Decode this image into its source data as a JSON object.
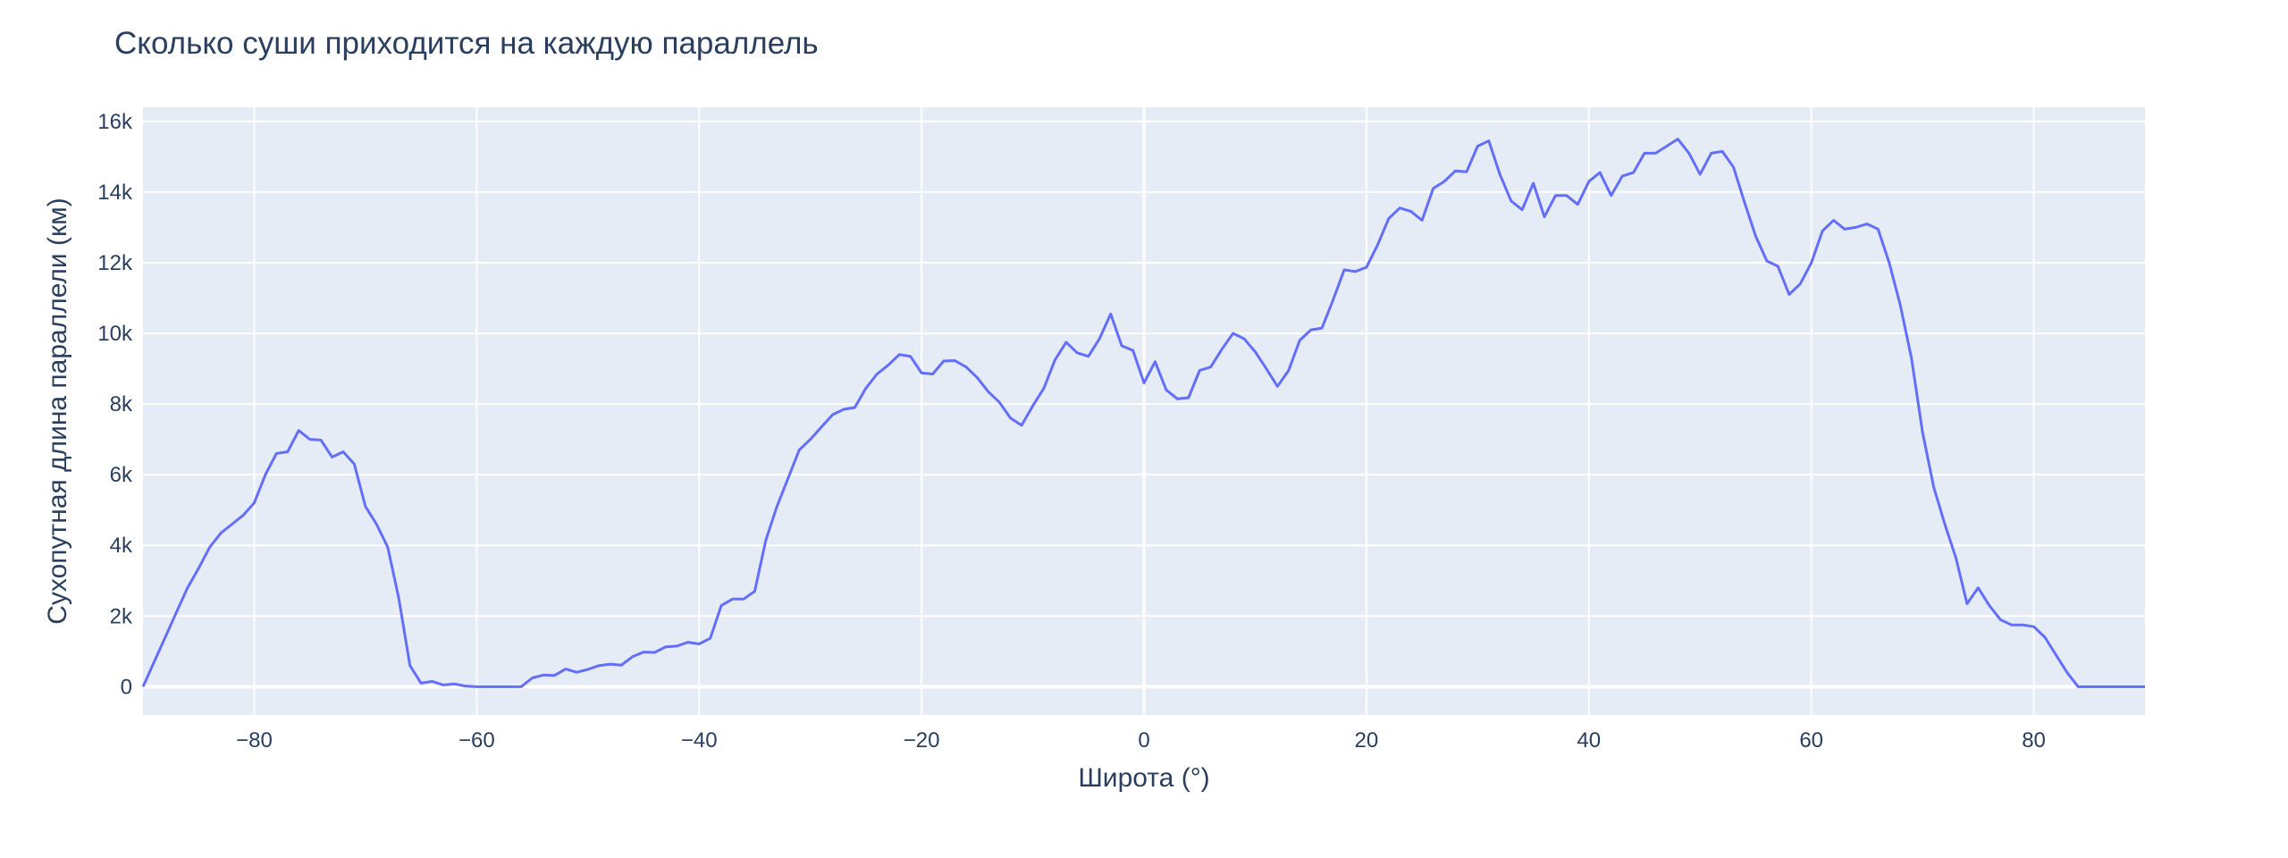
{
  "chart_data": {
    "type": "line",
    "title": "Сколько суши приходится на каждую параллель",
    "xlabel": "Широта (°)",
    "ylabel": "Сухопутная длина параллели (км)",
    "xlim": [
      -90,
      90
    ],
    "ylim": [
      -800,
      16400
    ],
    "x_ticks": [
      -80,
      -60,
      -40,
      -20,
      0,
      20,
      40,
      60,
      80
    ],
    "x_tick_labels": [
      "−80",
      "−60",
      "−40",
      "−20",
      "0",
      "20",
      "40",
      "60",
      "80"
    ],
    "y_ticks": [
      0,
      2000,
      4000,
      6000,
      8000,
      10000,
      12000,
      14000,
      16000
    ],
    "y_tick_labels": [
      "0",
      "2k",
      "4k",
      "6k",
      "8k",
      "10k",
      "12k",
      "14k",
      "16k"
    ],
    "grid": true,
    "colors": {
      "plot_background": "#e5ecf6",
      "grid": "#ffffff",
      "line": "#636efa",
      "text": "#2a3f5f"
    },
    "series": [
      {
        "x": [
          -90,
          -89,
          -88,
          -87,
          -86,
          -85,
          -84,
          -83,
          -82,
          -81,
          -80,
          -79,
          -78,
          -77,
          -76,
          -75,
          -74,
          -73,
          -72,
          -71,
          -70,
          -69,
          -68,
          -67,
          -66,
          -65,
          -64,
          -63,
          -62,
          -61,
          -60,
          -59,
          -58,
          -57,
          -56,
          -55,
          -54,
          -53,
          -52,
          -51,
          -50,
          -49,
          -48,
          -47,
          -46,
          -45,
          -44,
          -43,
          -42,
          -41,
          -40,
          -39,
          -38,
          -37,
          -36,
          -35,
          -34,
          -33,
          -32,
          -31,
          -30,
          -29,
          -28,
          -27,
          -26,
          -25,
          -24,
          -23,
          -22,
          -21,
          -20,
          -19,
          -18,
          -17,
          -16,
          -15,
          -14,
          -13,
          -12,
          -11,
          -10,
          -9,
          -8,
          -7,
          -6,
          -5,
          -4,
          -3,
          -2,
          -1,
          0,
          1,
          2,
          3,
          4,
          5,
          6,
          7,
          8,
          9,
          10,
          11,
          12,
          13,
          14,
          15,
          16,
          17,
          18,
          19,
          20,
          21,
          22,
          23,
          24,
          25,
          26,
          27,
          28,
          29,
          30,
          31,
          32,
          33,
          34,
          35,
          36,
          37,
          38,
          39,
          40,
          41,
          42,
          43,
          44,
          45,
          46,
          47,
          48,
          49,
          50,
          51,
          52,
          53,
          54,
          55,
          56,
          57,
          58,
          59,
          60,
          61,
          62,
          63,
          64,
          65,
          66,
          67,
          68,
          69,
          70,
          71,
          72,
          73,
          74,
          75,
          76,
          77,
          78,
          79,
          80,
          81,
          82,
          83,
          84,
          85,
          86,
          87,
          88,
          89,
          90
        ],
        "y": [
          0,
          700,
          1400,
          2100,
          2800,
          3350,
          3950,
          4350,
          4600,
          4850,
          5200,
          6000,
          6600,
          6650,
          7250,
          7000,
          6980,
          6500,
          6650,
          6300,
          5100,
          4600,
          3950,
          2500,
          600,
          100,
          150,
          50,
          80,
          20,
          0,
          0,
          0,
          0,
          0,
          250,
          330,
          320,
          500,
          410,
          490,
          600,
          640,
          610,
          850,
          980,
          970,
          1130,
          1150,
          1260,
          1210,
          1370,
          2300,
          2480,
          2480,
          2700,
          4150,
          5100,
          5900,
          6700,
          7000,
          7350,
          7700,
          7850,
          7900,
          8450,
          8850,
          9100,
          9400,
          9350,
          8880,
          8850,
          9220,
          9230,
          9050,
          8750,
          8350,
          8050,
          7600,
          7400,
          7950,
          8450,
          9250,
          9750,
          9450,
          9350,
          9850,
          10550,
          9650,
          9520,
          8600,
          9200,
          8400,
          8150,
          8180,
          8950,
          9050,
          9550,
          10000,
          9850,
          9480,
          9000,
          8500,
          8950,
          9800,
          10100,
          10150,
          10950,
          11800,
          11750,
          11870,
          12500,
          13250,
          13550,
          13450,
          13200,
          14100,
          14300,
          14600,
          14570,
          15300,
          15450,
          14500,
          13750,
          13500,
          14250,
          13300,
          13900,
          13900,
          13650,
          14300,
          14550,
          13900,
          14450,
          14550,
          15100,
          15100,
          15300,
          15500,
          15100,
          14500,
          15100,
          15150,
          14700,
          13700,
          12750,
          12050,
          11900,
          11100,
          11400,
          12000,
          12900,
          13200,
          12950,
          13000,
          13100,
          12950,
          12000,
          10800,
          9300,
          7200,
          5650,
          4600,
          3650,
          2350,
          2800,
          2300,
          1900,
          1750,
          1750,
          1700,
          1400,
          900,
          400,
          0,
          0,
          0,
          0,
          0,
          0,
          0
        ]
      }
    ]
  }
}
